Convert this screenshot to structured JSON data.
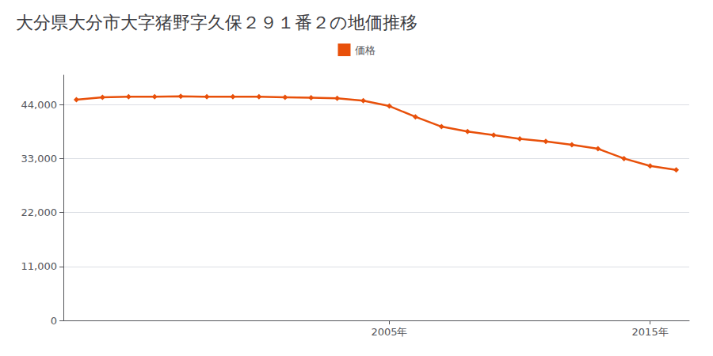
{
  "chart_data": {
    "type": "line",
    "title": "大分県大分市大字猪野字久保２９１番２の地価推移",
    "x": [
      1993,
      1994,
      1995,
      1996,
      1997,
      1998,
      1999,
      2000,
      2001,
      2002,
      2003,
      2004,
      2005,
      2006,
      2007,
      2008,
      2009,
      2010,
      2011,
      2012,
      2013,
      2014,
      2015,
      2016
    ],
    "series": [
      {
        "name": "価格",
        "color": "#E8500A",
        "marker": "diamond",
        "values": [
          45000,
          45500,
          45600,
          45600,
          45700,
          45600,
          45600,
          45600,
          45500,
          45400,
          45300,
          44800,
          43700,
          41500,
          39500,
          38500,
          37800,
          37000,
          36500,
          35800,
          35000,
          33000,
          31500,
          30700
        ]
      }
    ],
    "xlim": [
      1992.5,
      2016.5
    ],
    "xticks": [
      {
        "value": 2005,
        "label": "2005年"
      },
      {
        "value": 2015,
        "label": "2015年"
      }
    ],
    "ylim": [
      0,
      50000
    ],
    "yticks": [
      0,
      {
        "value": 11000,
        "label": "11,000"
      },
      {
        "value": 22000,
        "label": "22,000"
      },
      {
        "value": 33000,
        "label": "33,000"
      },
      {
        "value": 44000,
        "label": "44,000"
      }
    ],
    "grid": "y",
    "legend": "top"
  }
}
